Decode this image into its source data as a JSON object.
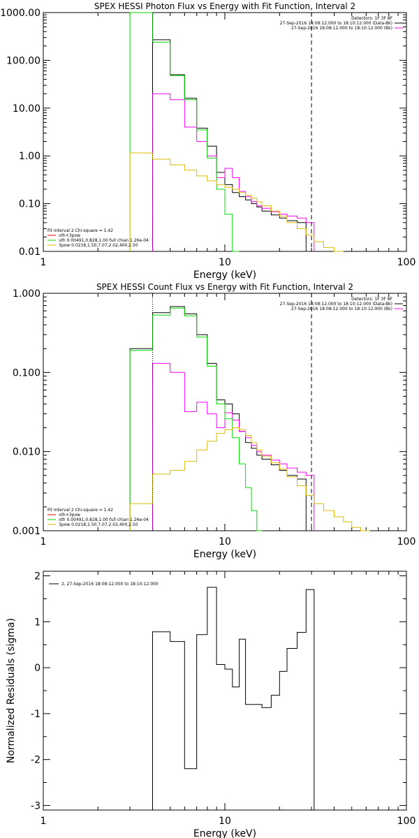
{
  "chart_data": [
    {
      "type": "line",
      "title": "SPEX HESSI Photon Flux vs Energy with Fit Function, Interval 2",
      "xlabel": "Energy (keV)",
      "ylabel": "",
      "x_scale": "log",
      "y_scale": "log",
      "xlim": [
        1,
        100
      ],
      "ylim": [
        0.01,
        1000
      ],
      "xticks": [
        1,
        10,
        100
      ],
      "xtick_labels": [
        "1",
        "10",
        "100"
      ],
      "yticks": [
        0.01,
        0.1,
        1,
        10,
        100,
        1000
      ],
      "ytick_labels": [
        "0.01",
        "0.10",
        "1.00",
        "10.00",
        "100.00",
        "1000.00"
      ],
      "legend_top_right": [
        "Detectors: 1F 3F 8F",
        "27-Sep-2016 18:08:12.000 to 18:10:12.000 (Data-Bk)",
        "27-Sep-2016 18:08:12.000 to 18:10:12.000 (Bk)"
      ],
      "legend_bottom_left": [
        "Fit Interval  2    Chi-square = 1.42",
        "vth+3pow",
        "vth 0.00491,0.828,1.00   full chian 1.26e-04",
        "3pow 0.0218,1.50,7.07,2.02,400,2.50"
      ],
      "edges": [
        3.0,
        4.0,
        5.0,
        6.0,
        7.0,
        8.0,
        9.0,
        10.0,
        11.0,
        12.0,
        13.0,
        14.0,
        15.0,
        16.0,
        18.0,
        20.0,
        22.0,
        25.0,
        28.0,
        31.0,
        35.0,
        40.0,
        45.0
      ],
      "series": [
        {
          "name": "",
          "color": "#000000",
          "values": [
            null,
            270,
            50,
            16,
            3.8,
            1.6,
            0.45,
            0.25,
            0.17,
            0.14,
            0.12,
            0.1,
            0.085,
            0.07,
            0.058,
            0.05,
            0.044,
            0.04,
            null,
            null,
            null,
            null
          ]
        },
        {
          "name": "",
          "color": "#ff00ff",
          "values": [
            null,
            20,
            15,
            4.0,
            2.0,
            1.0,
            0.35,
            0.55,
            0.35,
            0.18,
            0.14,
            0.11,
            0.09,
            0.08,
            0.068,
            0.06,
            0.055,
            0.05,
            0.04,
            null,
            null,
            null
          ]
        },
        {
          "name": "",
          "color": "#00dd00",
          "values": [
            1000,
            240,
            48,
            15,
            3.5,
            0.9,
            0.2,
            0.06,
            0.01,
            null,
            null,
            null,
            null,
            null,
            null,
            null,
            null,
            null,
            null,
            null,
            null,
            null
          ]
        },
        {
          "name": "",
          "color": "#ddbb00",
          "values": [
            1.15,
            0.85,
            0.65,
            0.5,
            0.38,
            0.3,
            0.25,
            0.22,
            0.2,
            0.17,
            0.15,
            0.13,
            0.11,
            0.09,
            0.07,
            0.055,
            0.04,
            0.03,
            0.022,
            0.016,
            0.012,
            0.01
          ]
        }
      ],
      "markers": [
        {
          "x": 4.0,
          "style": "dotted"
        },
        {
          "x": 30.0,
          "style": "dashed"
        }
      ]
    },
    {
      "type": "line",
      "title": "SPEX HESSI Count Flux vs Energy with Fit Function, Interval 2",
      "xlabel": "Energy (keV)",
      "ylabel": "",
      "x_scale": "log",
      "y_scale": "log",
      "xlim": [
        1,
        100
      ],
      "ylim": [
        0.001,
        1
      ],
      "xticks": [
        1,
        10,
        100
      ],
      "xtick_labels": [
        "1",
        "10",
        "100"
      ],
      "yticks": [
        0.001,
        0.01,
        0.1,
        1
      ],
      "ytick_labels": [
        "0.001",
        "0.010",
        "0.100",
        "1.000"
      ],
      "legend_top_right": [
        "Detectors: 1F 3F 8F",
        "27-Sep-2016 18:08:12.000 to 18:10:12.000 (Data-Bk)",
        "27-Sep-2016 18:08:12.000 to 18:10:12.000 (Bk)"
      ],
      "legend_bottom_left": [
        "Fit Interval  2    Chi-square = 1.42",
        "vth+3pow",
        "vth 0.00491,0.828,1.00   full chian 1.26e-04",
        "3pow 0.0218,1.50,7.07,2.02,400,2.50"
      ],
      "edges": [
        3.0,
        4.0,
        5.0,
        6.0,
        7.0,
        8.0,
        9.0,
        10.0,
        11.0,
        12.0,
        13.0,
        14.0,
        15.0,
        16.0,
        18.0,
        20.0,
        22.0,
        25.0,
        28.0,
        31.0,
        35.0,
        40.0,
        45.0,
        50.0,
        56.0,
        63.0
      ],
      "series": [
        {
          "name": "",
          "color": "#000000",
          "values": [
            0.2,
            0.57,
            0.68,
            0.55,
            0.3,
            0.13,
            0.045,
            0.04,
            0.03,
            0.018,
            0.013,
            0.011,
            0.009,
            0.008,
            0.0068,
            0.0058,
            0.005,
            0.0045,
            null,
            null,
            null,
            null,
            null,
            null,
            null
          ]
        },
        {
          "name": "",
          "color": "#ff00ff",
          "values": [
            null,
            0.13,
            0.1,
            0.032,
            0.042,
            0.03,
            0.02,
            0.031,
            0.025,
            0.018,
            0.015,
            0.012,
            0.01,
            0.009,
            0.0078,
            0.007,
            0.0062,
            0.0055,
            0.005,
            null,
            null,
            null,
            null,
            null,
            null
          ]
        },
        {
          "name": "",
          "color": "#00dd00",
          "values": [
            0.19,
            0.53,
            0.65,
            0.52,
            0.28,
            0.12,
            0.04,
            0.026,
            0.015,
            0.007,
            0.0035,
            0.0018,
            0.001,
            null,
            null,
            null,
            null,
            null,
            null,
            null,
            null,
            null,
            null,
            null,
            null
          ]
        },
        {
          "name": "",
          "color": "#ddbb00",
          "values": [
            0.0022,
            0.0052,
            0.0058,
            0.0075,
            0.0105,
            0.0135,
            0.017,
            0.019,
            0.02,
            0.019,
            0.016,
            0.013,
            0.0105,
            0.0088,
            0.0072,
            0.006,
            0.0048,
            0.0037,
            0.0028,
            0.0022,
            0.0018,
            0.0015,
            0.0013,
            0.0011,
            0.001
          ]
        }
      ],
      "markers": [
        {
          "x": 4.0,
          "style": "dotted"
        },
        {
          "x": 30.0,
          "style": "dashed"
        }
      ]
    },
    {
      "type": "line",
      "title": "",
      "xlabel": "Energy (keV)",
      "ylabel": "Normalized Residuals (sigma)",
      "x_scale": "log",
      "y_scale": "linear",
      "xlim": [
        1,
        100
      ],
      "ylim": [
        -3.1,
        2.1
      ],
      "xticks": [
        1,
        10,
        100
      ],
      "xtick_labels": [
        "1",
        "10",
        "100"
      ],
      "yticks": [
        -3,
        -2,
        -1,
        0,
        1,
        2
      ],
      "ytick_labels": [
        "-3",
        "-2",
        "-1",
        "0",
        "1",
        "2"
      ],
      "legend_top_left": [
        "2, 27-Sep-2016 18:08:12.000 to 18:10:12.000"
      ],
      "edges": [
        4.0,
        5.0,
        6.0,
        7.0,
        8.0,
        9.0,
        10.0,
        11.0,
        12.0,
        13.0,
        14.0,
        15.0,
        16.0,
        18.0,
        20.0,
        22.0,
        25.0,
        28.0,
        31.0
      ],
      "series": [
        {
          "name": "",
          "color": "#000000",
          "values": [
            0.78,
            0.57,
            -2.2,
            0.72,
            1.75,
            0.07,
            -0.03,
            -0.42,
            0.62,
            -0.8,
            -0.8,
            -0.8,
            -0.87,
            -0.6,
            -0.08,
            0.42,
            0.77,
            1.7
          ]
        }
      ]
    }
  ]
}
